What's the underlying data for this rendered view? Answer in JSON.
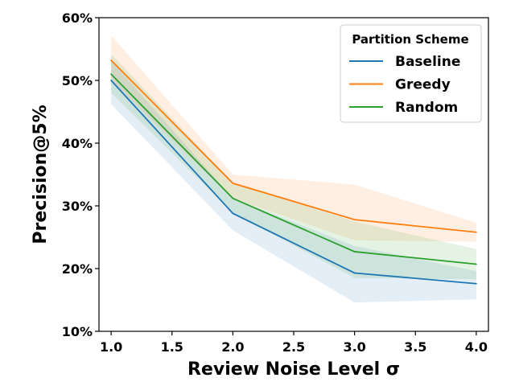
{
  "chart_data": {
    "type": "line",
    "title": "",
    "xlabel": "Review Noise Level σ",
    "ylabel": "Precision@5%",
    "xlim": [
      0.9,
      4.1
    ],
    "ylim": [
      10,
      60
    ],
    "x_ticks": [
      1.0,
      1.5,
      2.0,
      2.5,
      3.0,
      3.5,
      4.0
    ],
    "x_tick_labels": [
      "1.0",
      "1.5",
      "2.0",
      "2.5",
      "3.0",
      "3.5",
      "4.0"
    ],
    "y_ticks": [
      10,
      20,
      30,
      40,
      50,
      60
    ],
    "y_tick_labels": [
      "10%",
      "20%",
      "30%",
      "40%",
      "50%",
      "60%"
    ],
    "x": [
      1.0,
      2.0,
      3.0,
      4.0
    ],
    "series": [
      {
        "name": "Baseline",
        "color": "#1f77b4",
        "values": [
          50.0,
          28.8,
          19.3,
          17.6
        ],
        "lower": [
          46.2,
          26.1,
          14.6,
          15.1
        ],
        "upper": [
          53.2,
          31.2,
          23.6,
          19.6
        ]
      },
      {
        "name": "Greedy",
        "color": "#ff7f0e",
        "values": [
          53.2,
          33.6,
          27.8,
          25.8
        ],
        "lower": [
          49.9,
          31.2,
          24.5,
          24.3
        ],
        "upper": [
          57.2,
          35.0,
          33.4,
          27.3
        ]
      },
      {
        "name": "Random",
        "color": "#2ca02c",
        "values": [
          51.0,
          31.2,
          22.7,
          20.7
        ],
        "lower": [
          48.0,
          28.9,
          18.5,
          18.3
        ],
        "upper": [
          54.2,
          33.7,
          27.5,
          23.1
        ]
      }
    ],
    "legend_title": "Partition Scheme",
    "legend_position": "top-right",
    "grid": false
  }
}
